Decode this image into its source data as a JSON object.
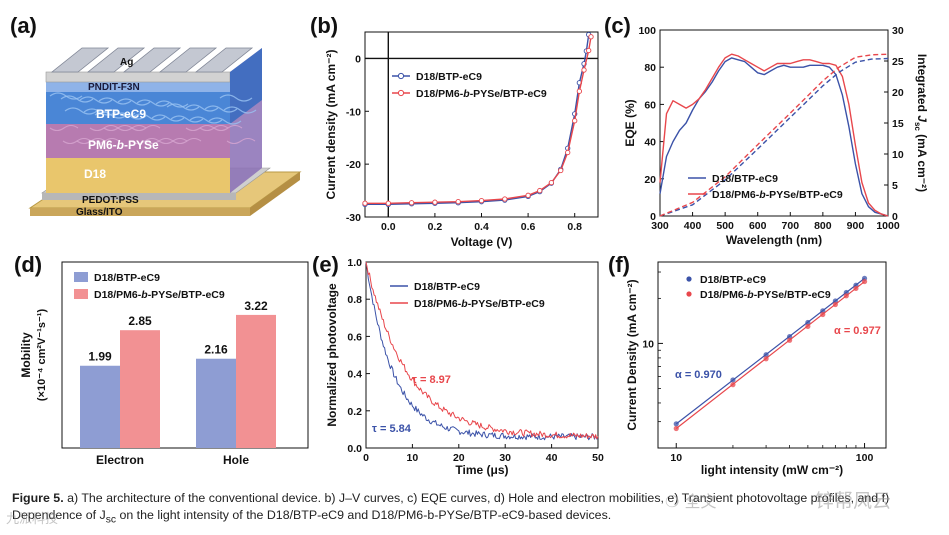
{
  "panel_labels": [
    "(a)",
    "(b)",
    "(c)",
    "(d)",
    "(e)",
    "(f)"
  ],
  "panel_a": {
    "layers": [
      "Ag",
      "PNDIT-F3N",
      "BTP-eC9",
      "PM6-b-PYSe",
      "D18",
      "PEDOT:PSS",
      "Glass/ITO"
    ]
  },
  "caption": {
    "lead": "Figure 5.",
    "text": "a) The architecture of the conventional device. b) J–V curves, c) EQE curves, d) Hole and electron mobilities, e) Transient photovoltage profiles, and f) Dependence of J",
    "sub": "sc",
    "tail": " on the light intensity of the D18/BTP-eC9 and D18/PM6-b-PYSe/BTP-eC9-based devices."
  },
  "watermark": {
    "left": "全文",
    "right": "锌帮风云",
    "bottom": "九派科技"
  },
  "colors": {
    "blue": "#3b52a8",
    "red": "#e8474c",
    "bar_blue": "#8e9dd3",
    "bar_red": "#f29193"
  },
  "chart_data": [
    {
      "id": "b",
      "type": "line",
      "xlabel": "Voltage (V)",
      "ylabel": "Current density (mA cm⁻²)",
      "xlim": [
        -0.1,
        0.9
      ],
      "ylim": [
        -30,
        5
      ],
      "xticks": [
        "0.0",
        "0.2",
        "0.4",
        "0.6",
        "0.8"
      ],
      "yticks": [
        "0",
        "-10",
        "-20",
        "-30"
      ],
      "series": [
        {
          "name": "D18/BTP-eC9",
          "color": "#3b52a8",
          "x": [
            -0.1,
            0.0,
            0.1,
            0.2,
            0.3,
            0.4,
            0.5,
            0.6,
            0.65,
            0.7,
            0.74,
            0.77,
            0.8,
            0.82,
            0.84,
            0.85,
            0.86
          ],
          "y": [
            -27.6,
            -27.6,
            -27.5,
            -27.4,
            -27.3,
            -27.1,
            -26.8,
            -26.1,
            -25.2,
            -23.6,
            -21.0,
            -17.0,
            -10.5,
            -4.6,
            -1.0,
            1.4,
            4.5
          ]
        },
        {
          "name": "D18/PM6-b-PYSe/BTP-eC9",
          "color": "#e8474c",
          "x": [
            -0.1,
            0.0,
            0.1,
            0.2,
            0.3,
            0.4,
            0.5,
            0.6,
            0.65,
            0.7,
            0.74,
            0.77,
            0.8,
            0.82,
            0.84,
            0.86,
            0.87
          ],
          "y": [
            -27.4,
            -27.4,
            -27.3,
            -27.2,
            -27.1,
            -26.9,
            -26.6,
            -25.9,
            -25.0,
            -23.5,
            -21.2,
            -17.8,
            -11.8,
            -6.2,
            -2.2,
            1.5,
            4.1
          ]
        }
      ]
    },
    {
      "id": "c",
      "type": "line",
      "xlabel": "Wavelength (nm)",
      "ylabel": "EQE (%)",
      "y2label": "Integrated Jsc (mA cm⁻²)",
      "xlim": [
        300,
        1000
      ],
      "ylim": [
        0,
        100
      ],
      "y2lim": [
        0,
        30
      ],
      "xticks": [
        "300",
        "400",
        "500",
        "600",
        "700",
        "800",
        "900",
        "1000"
      ],
      "yticks": [
        "0",
        "20",
        "40",
        "60",
        "80",
        "100"
      ],
      "y2ticks": [
        "0",
        "5",
        "10",
        "15",
        "20",
        "25",
        "30"
      ],
      "series": [
        {
          "name": "D18/BTP-eC9",
          "color": "#3b52a8",
          "x": [
            300,
            320,
            340,
            360,
            380,
            400,
            420,
            440,
            460,
            480,
            500,
            520,
            540,
            560,
            580,
            600,
            620,
            640,
            660,
            680,
            700,
            720,
            740,
            760,
            780,
            800,
            820,
            840,
            860,
            880,
            900,
            920,
            940,
            960,
            980,
            1000
          ],
          "y": [
            12,
            32,
            40,
            46,
            50,
            57,
            63,
            67,
            72,
            78,
            83,
            85,
            84,
            83,
            80,
            77,
            76,
            78,
            80,
            81,
            80,
            80,
            80,
            81,
            81,
            81,
            80,
            76,
            65,
            48,
            28,
            12,
            5,
            2,
            1,
            0
          ]
        },
        {
          "name": "D18/PM6-b-PYSe/BTP-eC9",
          "color": "#e8474c",
          "x": [
            300,
            320,
            340,
            360,
            380,
            400,
            420,
            440,
            460,
            480,
            500,
            520,
            540,
            560,
            580,
            600,
            620,
            640,
            660,
            680,
            700,
            720,
            740,
            760,
            780,
            800,
            820,
            840,
            860,
            880,
            900,
            920,
            940,
            960,
            980,
            1000
          ],
          "y": [
            18,
            55,
            62,
            60,
            58,
            60,
            63,
            68,
            74,
            80,
            85,
            87,
            86,
            84,
            82,
            80,
            78,
            80,
            82,
            82,
            82,
            83,
            84,
            84,
            83,
            82,
            82,
            81,
            75,
            60,
            38,
            18,
            7,
            3,
            1,
            0
          ]
        },
        {
          "name": "Integrated Jsc (D18/BTP-eC9)",
          "color": "#3b52a8",
          "dashed": true,
          "axis": "y2",
          "x": [
            300,
            400,
            500,
            600,
            700,
            800,
            850,
            900,
            950,
            1000
          ],
          "y": [
            0,
            1.8,
            5.8,
            10.8,
            15.9,
            21.0,
            23.2,
            24.8,
            25.3,
            25.4
          ]
        },
        {
          "name": "Integrated Jsc (D18/PM6-b-PYSe/BTP-eC9)",
          "color": "#e8474c",
          "dashed": true,
          "axis": "y2",
          "x": [
            300,
            400,
            500,
            600,
            700,
            800,
            850,
            900,
            950,
            1000
          ],
          "y": [
            0,
            2.2,
            6.3,
            11.5,
            16.6,
            21.8,
            24.0,
            25.6,
            26.0,
            26.1
          ]
        }
      ]
    },
    {
      "id": "d",
      "type": "bar",
      "ylabel": "Mobility (×10⁻⁴ cm²V⁻¹s⁻¹)",
      "categories": [
        "Electron",
        "Hole"
      ],
      "ylim": [
        0,
        4.5
      ],
      "series": [
        {
          "name": "D18/BTP-eC9",
          "color": "#8e9dd3",
          "values": [
            1.99,
            2.16
          ],
          "labels": [
            "1.99",
            "2.16"
          ]
        },
        {
          "name": "D18/PM6-b-PYSe/BTP-eC9",
          "color": "#f29193",
          "values": [
            2.85,
            3.22
          ],
          "labels": [
            "2.85",
            "3.22"
          ]
        }
      ]
    },
    {
      "id": "e",
      "type": "line",
      "xlabel": "Time (μs)",
      "ylabel": "Normalized photovoltage",
      "xlim": [
        0,
        50
      ],
      "ylim": [
        0,
        1.0
      ],
      "xticks": [
        "0",
        "10",
        "20",
        "30",
        "40",
        "50"
      ],
      "yticks": [
        "0.0",
        "0.2",
        "0.4",
        "0.6",
        "0.8",
        "1.0"
      ],
      "annotations": [
        "τ = 8.97",
        "τ = 5.84"
      ],
      "series": [
        {
          "name": "D18/BTP-eC9",
          "color": "#3b52a8",
          "tau": 5.84,
          "baseline": 0.06
        },
        {
          "name": "D18/PM6-b-PYSe/BTP-eC9",
          "color": "#e8474c",
          "tau": 8.97,
          "baseline": 0.06
        }
      ]
    },
    {
      "id": "f",
      "type": "scatter",
      "xlabel": "light intensity (mW cm⁻²)",
      "ylabel": "Current Density (mA cm⁻²)",
      "xscale": "log",
      "yscale": "log",
      "xlim": [
        8,
        130
      ],
      "ylim": [
        2,
        35
      ],
      "xticks": [
        "10",
        "100"
      ],
      "yticks": [
        "10"
      ],
      "annotations": [
        "α = 0.970",
        "α = 0.977"
      ],
      "series": [
        {
          "name": "D18/BTP-eC9",
          "color": "#3b52a8",
          "alpha": 0.97,
          "x": [
            10,
            20,
            30,
            40,
            50,
            60,
            70,
            80,
            90,
            100
          ],
          "y": [
            2.9,
            5.7,
            8.4,
            11.1,
            13.8,
            16.5,
            19.2,
            21.9,
            24.5,
            27.2
          ]
        },
        {
          "name": "D18/PM6-b-PYSe/BTP-eC9",
          "color": "#e8474c",
          "alpha": 0.977,
          "x": [
            10,
            20,
            30,
            40,
            50,
            60,
            70,
            80,
            90,
            100
          ],
          "y": [
            2.7,
            5.3,
            7.9,
            10.5,
            13.0,
            15.6,
            18.2,
            20.8,
            23.3,
            25.9
          ]
        }
      ]
    }
  ]
}
